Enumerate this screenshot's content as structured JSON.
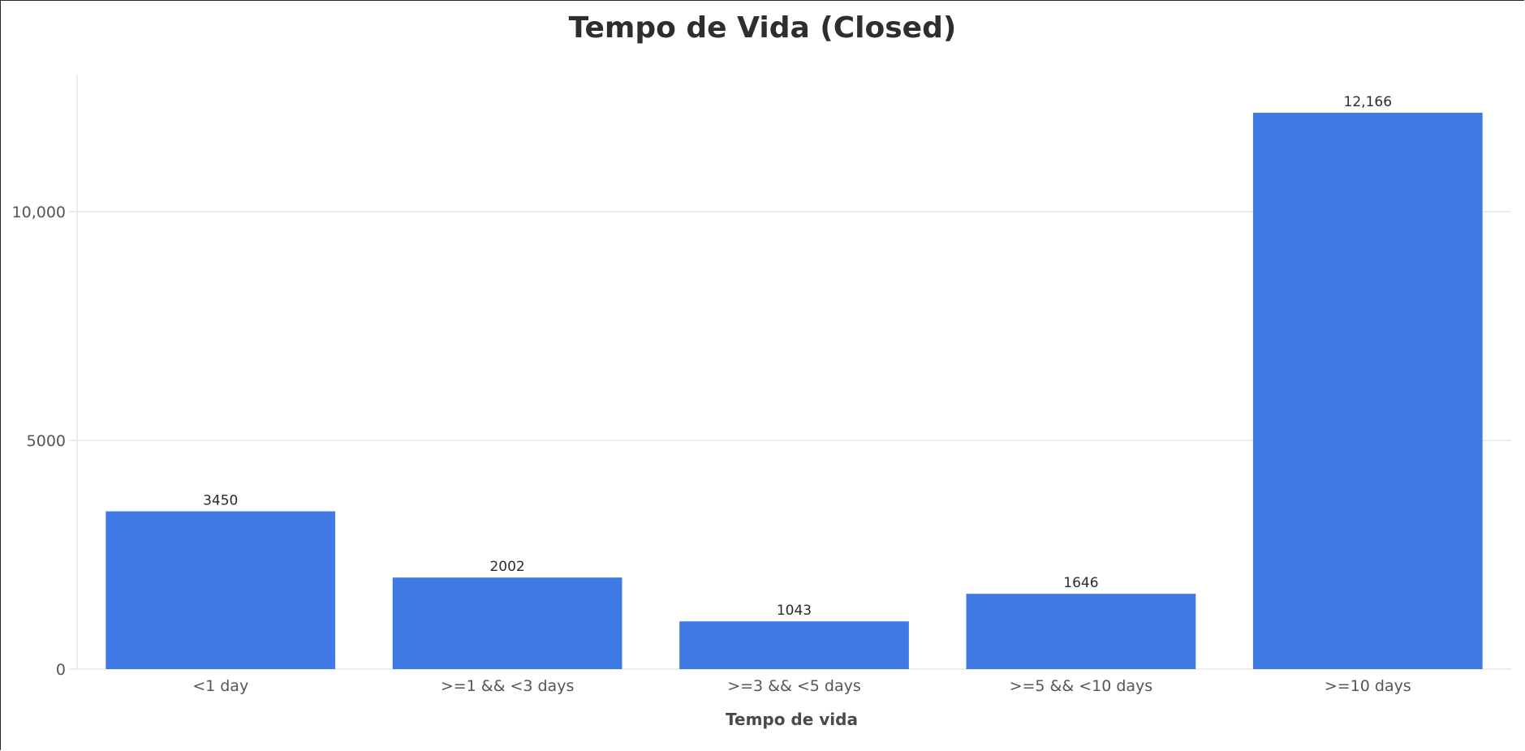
{
  "chart_data": {
    "type": "bar",
    "title": "Tempo de Vida (Closed)",
    "xlabel": "Tempo de vida",
    "ylabel": "",
    "categories": [
      "<1 day",
      ">=1 && <3 days",
      ">=3 && <5 days",
      ">=5 && <10 days",
      ">=10 days"
    ],
    "values": [
      3450,
      2002,
      1043,
      1646,
      12166
    ],
    "value_labels": [
      "3450",
      "2002",
      "1043",
      "1646",
      "12,166"
    ],
    "ylim": [
      0,
      13000
    ],
    "yticks": [
      0,
      5000,
      10000
    ],
    "ytick_labels": [
      "0",
      "5000",
      "10,000"
    ],
    "grid": true,
    "legend": "none",
    "bar_color": "#3f79e4",
    "grid_color": "#e6e6e6"
  }
}
